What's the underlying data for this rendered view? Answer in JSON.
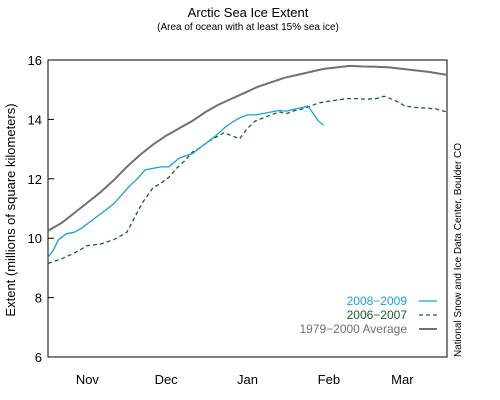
{
  "chart_data": {
    "type": "line",
    "title": "Arctic Sea Ice Extent",
    "subtitle": "(Area of ocean with at least 15% sea ice)",
    "ylabel": "Extent (millions of square kilometers)",
    "xlabel": "",
    "ylim": [
      6,
      16
    ],
    "y_ticks": [
      6,
      8,
      10,
      12,
      14,
      16
    ],
    "x_range_days": [
      0,
      152
    ],
    "x_ticks": [
      {
        "label": "Nov",
        "day": 15
      },
      {
        "label": "Dec",
        "day": 45
      },
      {
        "label": "Jan",
        "day": 76
      },
      {
        "label": "Feb",
        "day": 107
      },
      {
        "label": "Mar",
        "day": 135
      }
    ],
    "grid": false,
    "legend_position": "bottom-right",
    "credit": "National Snow and Ice Data Center, Boulder CO",
    "series": [
      {
        "name": "2008−2009",
        "color": "#1a9ee0",
        "style": "solid",
        "x": [
          0,
          2,
          4,
          7,
          10,
          13,
          16,
          19,
          22,
          25,
          28,
          31,
          34,
          37,
          40,
          43,
          46,
          48,
          50,
          55,
          58,
          61,
          64,
          67,
          70,
          73,
          76,
          79,
          82,
          85,
          88,
          91,
          94,
          97,
          99,
          101,
          103,
          105
        ],
        "y": [
          9.35,
          9.6,
          9.95,
          10.15,
          10.2,
          10.35,
          10.55,
          10.75,
          10.95,
          11.15,
          11.45,
          11.75,
          12.0,
          12.3,
          12.35,
          12.4,
          12.4,
          12.55,
          12.7,
          12.85,
          13.05,
          13.25,
          13.45,
          13.7,
          13.9,
          14.05,
          14.15,
          14.15,
          14.2,
          14.25,
          14.3,
          14.28,
          14.35,
          14.4,
          14.45,
          14.2,
          13.95,
          13.8
        ]
      },
      {
        "name": "2006−2007",
        "color": "#1e5e2c",
        "style": "dashed",
        "x": [
          0,
          5,
          10,
          15,
          20,
          25,
          30,
          33,
          36,
          40,
          43,
          46,
          49,
          52,
          55,
          58,
          61,
          64,
          67,
          70,
          73,
          76,
          79,
          82,
          85,
          88,
          91,
          94,
          97,
          100,
          103,
          106,
          110,
          114,
          118,
          121,
          125,
          128,
          132,
          136,
          140,
          144,
          148,
          152
        ],
        "y": [
          9.15,
          9.3,
          9.5,
          9.75,
          9.8,
          9.95,
          10.2,
          10.7,
          11.2,
          11.7,
          11.85,
          12.05,
          12.35,
          12.6,
          12.9,
          13.05,
          13.25,
          13.4,
          13.55,
          13.45,
          13.35,
          13.7,
          13.95,
          14.05,
          14.15,
          14.25,
          14.2,
          14.3,
          14.35,
          14.45,
          14.55,
          14.6,
          14.65,
          14.7,
          14.7,
          14.68,
          14.7,
          14.78,
          14.65,
          14.45,
          14.4,
          14.38,
          14.35,
          14.25
        ]
      },
      {
        "name": "1979−2000 Average",
        "color": "#707070",
        "style": "solid",
        "x": [
          0,
          5,
          10,
          15,
          20,
          25,
          30,
          35,
          40,
          45,
          50,
          55,
          60,
          65,
          70,
          75,
          80,
          85,
          90,
          95,
          100,
          105,
          110,
          115,
          120,
          125,
          130,
          135,
          140,
          145,
          152
        ],
        "y": [
          10.25,
          10.5,
          10.85,
          11.2,
          11.55,
          11.95,
          12.4,
          12.8,
          13.15,
          13.45,
          13.7,
          13.95,
          14.25,
          14.5,
          14.7,
          14.9,
          15.1,
          15.25,
          15.4,
          15.5,
          15.6,
          15.7,
          15.75,
          15.8,
          15.78,
          15.77,
          15.75,
          15.7,
          15.65,
          15.6,
          15.5
        ]
      }
    ]
  }
}
